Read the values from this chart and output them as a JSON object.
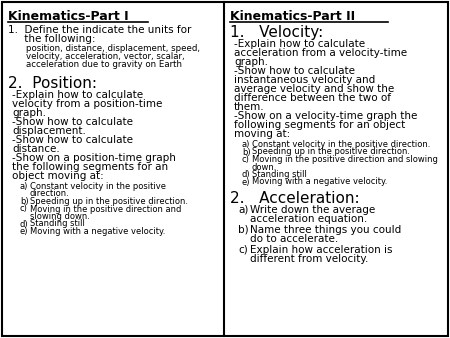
{
  "background_color": "#ffffff",
  "border_color": "#000000",
  "left_title": "Kinematics-Part I",
  "right_title": "Kinematics-Part II",
  "left_items": {
    "item1_header": "1.  Define the indicate the units for",
    "item1_cont": "     the following:",
    "item1_sub": [
      "position, distance, displacement, speed,",
      "velocity, acceleration, vector, scalar,",
      "acceleration due to gravity on Earth"
    ],
    "item2_header": "2.  Position:",
    "item2_body": [
      "-Explain how to calculate",
      "velocity from a position-time",
      "graph.",
      "-Show how to calculate",
      "displacement.",
      "-Show how to calculate",
      "distance.",
      "-Show on a position-time graph",
      "the following segments for an",
      "object moving at:"
    ],
    "item2_sub": [
      [
        "a)",
        "Constant velocity in the positive"
      ],
      [
        "",
        "direction."
      ],
      [
        "b)",
        "Speeding up in the positive direction."
      ],
      [
        "c)",
        "Moving in the positive direction and"
      ],
      [
        "",
        "slowing down."
      ],
      [
        "d)",
        "Standing still"
      ],
      [
        "e)",
        "Moving with a negative velocity."
      ]
    ]
  },
  "right_items": {
    "item1_header": "1.   Velocity:",
    "item1_body": [
      "-Explain how to calculate",
      "acceleration from a velocity-time",
      "graph.",
      "-Show how to calculate",
      "instantaneous velocity and",
      "average velocity and show the",
      "difference between the two of",
      "them.",
      "-Show on a velocity-time graph the",
      "following segments for an object",
      "moving at:"
    ],
    "item1_sub": [
      [
        "a)",
        "Constant velocity in the positive direction."
      ],
      [
        "b)",
        "Speeding up in the positive direction."
      ],
      [
        "c)",
        "Moving in the positive direction and slowing"
      ],
      [
        "",
        "down."
      ],
      [
        "d)",
        "Standing still"
      ],
      [
        "e)",
        "Moving with a negative velocity."
      ]
    ],
    "item2_header": "2.   Acceleration:",
    "item2_sub": [
      [
        "a)",
        "Write down the average",
        "acceleration equation."
      ],
      [
        "b)",
        "Name three things you could",
        "do to accelerate."
      ],
      [
        "c)",
        "Explain how acceleration is",
        "different from velocity."
      ]
    ]
  }
}
